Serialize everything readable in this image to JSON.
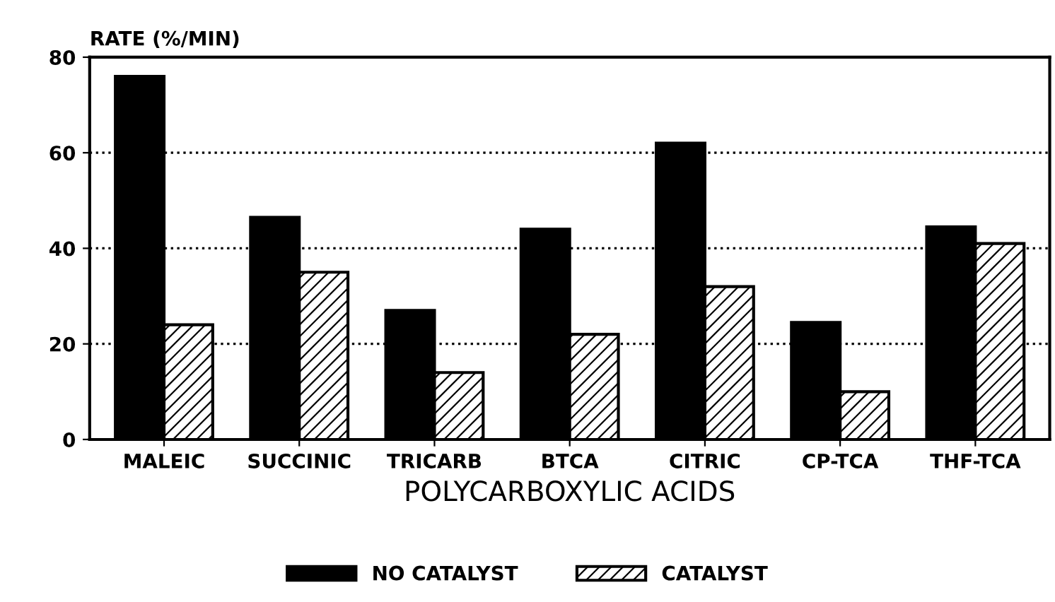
{
  "chart_data": {
    "type": "bar",
    "ylabel": "RATE (%/MIN)",
    "xlabel": "POLYCARBOXYLIC ACIDS",
    "categories": [
      "MALEIC",
      "SUCCINIC",
      "TRICARB",
      "BTCA",
      "CITRIC",
      "CP-TCA",
      "THF-TCA"
    ],
    "series": [
      {
        "name": "NO CATALYST",
        "color": "#000000",
        "values": [
          76,
          46.5,
          27,
          44,
          62,
          24.5,
          44.5
        ]
      },
      {
        "name": "CATALYST",
        "color": "#000000",
        "values": [
          24,
          35,
          14,
          22,
          32,
          10,
          41
        ]
      }
    ],
    "ylim": [
      0,
      80
    ],
    "yticks": [
      0,
      20,
      40,
      60,
      80
    ],
    "grid": "y",
    "legend": "bottom"
  }
}
